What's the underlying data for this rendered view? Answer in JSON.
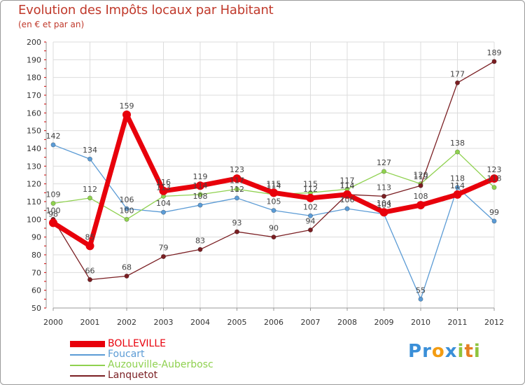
{
  "header": {
    "title": "Evolution des Impôts locaux par Habitant",
    "subtitle": "(en € et par an)"
  },
  "colors": {
    "title": "#c0392b",
    "axis_text": "#333333",
    "grid": "#dcdcdc",
    "bolleville": "#e8000b",
    "foucart": "#5b9bd5",
    "auzouville": "#8fd14f",
    "lanquetot": "#7a1e22"
  },
  "chart_data": {
    "type": "line",
    "title": "Evolution des Impôts locaux par Habitant",
    "subtitle": "(en € et par an)",
    "xlabel": "",
    "ylabel": "",
    "ylim": [
      50,
      200
    ],
    "yticks": [
      50,
      60,
      70,
      80,
      90,
      100,
      110,
      120,
      130,
      140,
      150,
      160,
      170,
      180,
      190,
      200
    ],
    "grid": true,
    "categories": [
      "2000",
      "2001",
      "2002",
      "2003",
      "2004",
      "2005",
      "2006",
      "2007",
      "2008",
      "2009",
      "2010",
      "2011",
      "2012"
    ],
    "series": [
      {
        "name": "BOLLEVILLE",
        "values": [
          98,
          85,
          159,
          116,
          119,
          123,
          115,
          112,
          114,
          104,
          108,
          114,
          123
        ]
      },
      {
        "name": "Foucart",
        "values": [
          142,
          134,
          106,
          104,
          108,
          112,
          105,
          102,
          106,
          103,
          55,
          118,
          99
        ]
      },
      {
        "name": "Auzouville-Auberbosc",
        "values": [
          109,
          112,
          100,
          113,
          114,
          117,
          114,
          115,
          117,
          127,
          120,
          138,
          118
        ]
      },
      {
        "name": "Lanquetot",
        "values": [
          100,
          66,
          68,
          79,
          83,
          93,
          90,
          94,
          114,
          113,
          119,
          177,
          189
        ]
      }
    ],
    "legend_position": "bottom-left"
  },
  "legend": {
    "items": [
      "BOLLEVILLE",
      "Foucart",
      "Auzouville-Auberbosc",
      "Lanquetot"
    ]
  },
  "logo": {
    "letters": [
      "P",
      "r",
      "o",
      "x",
      "i",
      "t",
      "i"
    ],
    "colors": [
      "#3a8fd8",
      "#3a8fd8",
      "#f39c12",
      "#3a8fd8",
      "#8fc43f",
      "#e67e22",
      "#8fc43f"
    ]
  }
}
